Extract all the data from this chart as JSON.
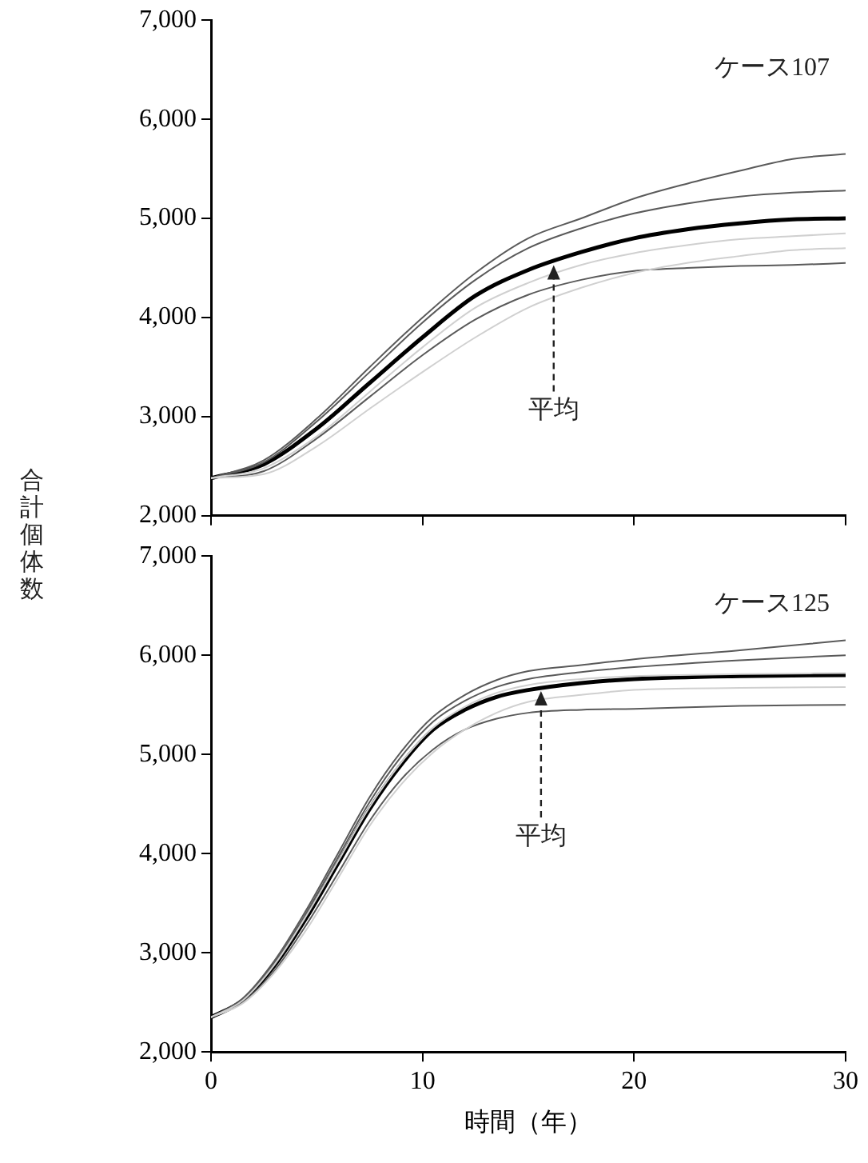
{
  "chart_data": [
    {
      "type": "line",
      "ylabel": "合計個体数",
      "annotations": [
        "ケース107",
        {
          "text": "平均",
          "x": 16.2,
          "y": 4560
        }
      ],
      "x": [
        0,
        2.5,
        5,
        7.5,
        10,
        12.5,
        15,
        17.5,
        20,
        22.5,
        25,
        27.5,
        30
      ],
      "xlim": [
        0,
        30
      ],
      "xticks": [
        0,
        10,
        20,
        30
      ],
      "ylim": [
        2000,
        7000
      ],
      "yticks": [
        {
          "value": 2000,
          "label": "2,000"
        },
        {
          "value": 3000,
          "label": "3,000"
        },
        {
          "value": 4000,
          "label": "4,000"
        },
        {
          "value": 5000,
          "label": "5,000"
        },
        {
          "value": 6000,
          "label": "6,000"
        },
        {
          "value": 7000,
          "label": "7,000"
        }
      ],
      "tick_labels": "y",
      "grid": false,
      "legend": false,
      "series": [
        {
          "color": "#d0d0d0",
          "values": [
            2380,
            2420,
            2700,
            3080,
            3450,
            3800,
            4100,
            4300,
            4450,
            4550,
            4620,
            4680,
            4700
          ]
        },
        {
          "color": "#d0d0d0",
          "values": [
            2380,
            2480,
            2800,
            3250,
            3700,
            4100,
            4350,
            4530,
            4650,
            4730,
            4790,
            4820,
            4850
          ]
        },
        {
          "color": "#5a5a5a",
          "values": [
            2380,
            2450,
            2780,
            3200,
            3620,
            3980,
            4230,
            4380,
            4470,
            4500,
            4520,
            4530,
            4550
          ]
        },
        {
          "color": "#5a5a5a",
          "values": [
            2380,
            2540,
            2950,
            3450,
            3950,
            4380,
            4700,
            4900,
            5050,
            5150,
            5220,
            5260,
            5280
          ]
        },
        {
          "color": "#5a5a5a",
          "values": [
            2380,
            2560,
            2980,
            3500,
            4000,
            4450,
            4800,
            5000,
            5200,
            5350,
            5480,
            5600,
            5650
          ]
        },
        {
          "color": "#000000",
          "values": [
            2380,
            2520,
            2880,
            3340,
            3800,
            4220,
            4480,
            4660,
            4800,
            4890,
            4950,
            4990,
            5000
          ]
        }
      ]
    },
    {
      "type": "line",
      "xlabel": "時間（年）",
      "annotations": [
        "ケース125",
        {
          "text": "平均",
          "x": 15.6,
          "y": 5670
        }
      ],
      "x": [
        0,
        1.5,
        3,
        4.5,
        6,
        7.5,
        9,
        10.5,
        12,
        13.5,
        15,
        17.5,
        20,
        25,
        30
      ],
      "xlim": [
        0,
        30
      ],
      "xticks": [
        0,
        10,
        20,
        30
      ],
      "ylim": [
        2000,
        7000
      ],
      "yticks": [
        {
          "value": 2000,
          "label": "2,000"
        },
        {
          "value": 3000,
          "label": "3,000"
        },
        {
          "value": 4000,
          "label": "4,000"
        },
        {
          "value": 5000,
          "label": "5,000"
        },
        {
          "value": 6000,
          "label": "6,000"
        },
        {
          "value": 7000,
          "label": "7,000"
        }
      ],
      "grid": false,
      "legend": false,
      "series": [
        {
          "color": "#d0d0d0",
          "values": [
            2350,
            2490,
            2800,
            3230,
            3750,
            4280,
            4700,
            5020,
            5250,
            5420,
            5530,
            5600,
            5650,
            5670,
            5680
          ]
        },
        {
          "color": "#d0d0d0",
          "values": [
            2350,
            2520,
            2880,
            3370,
            3920,
            4470,
            4920,
            5270,
            5480,
            5620,
            5700,
            5760,
            5790,
            5810,
            5820
          ]
        },
        {
          "color": "#5a5a5a",
          "values": [
            2350,
            2500,
            2820,
            3280,
            3800,
            4330,
            4750,
            5050,
            5250,
            5360,
            5420,
            5450,
            5460,
            5490,
            5500
          ]
        },
        {
          "color": "#5a5a5a",
          "values": [
            2350,
            2530,
            2900,
            3400,
            3960,
            4520,
            4980,
            5330,
            5540,
            5680,
            5760,
            5830,
            5880,
            5950,
            6000
          ]
        },
        {
          "color": "#5a5a5a",
          "values": [
            2350,
            2540,
            2920,
            3430,
            4000,
            4570,
            5030,
            5380,
            5600,
            5750,
            5840,
            5900,
            5960,
            6050,
            6150
          ]
        },
        {
          "color": "#000000",
          "values": [
            2350,
            2520,
            2870,
            3350,
            3900,
            4450,
            4900,
            5250,
            5450,
            5580,
            5650,
            5720,
            5760,
            5790,
            5800
          ]
        }
      ]
    }
  ]
}
